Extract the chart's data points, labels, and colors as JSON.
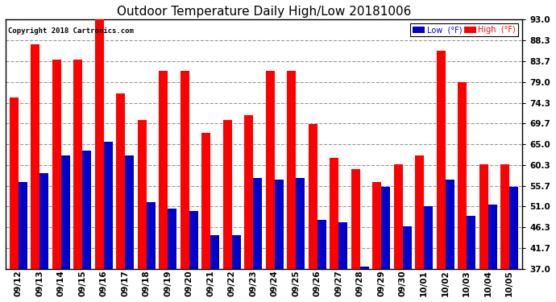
{
  "title": "Outdoor Temperature Daily High/Low 20181006",
  "copyright": "Copyright 2018 Cartronics.com",
  "categories": [
    "09/12",
    "09/13",
    "09/14",
    "09/15",
    "09/16",
    "09/17",
    "09/18",
    "09/19",
    "09/20",
    "09/21",
    "09/22",
    "09/23",
    "09/24",
    "09/25",
    "09/26",
    "09/27",
    "09/28",
    "09/29",
    "09/30",
    "10/01",
    "10/02",
    "10/03",
    "10/04",
    "10/05"
  ],
  "highs": [
    75.5,
    87.5,
    84.0,
    84.0,
    93.0,
    76.5,
    70.5,
    81.5,
    81.5,
    67.5,
    70.5,
    71.5,
    81.5,
    81.5,
    69.5,
    62.0,
    59.5,
    56.5,
    60.5,
    62.5,
    86.0,
    79.0,
    60.5,
    60.5
  ],
  "lows": [
    56.5,
    58.5,
    62.5,
    63.5,
    65.5,
    62.5,
    52.0,
    50.5,
    50.0,
    44.5,
    44.5,
    57.5,
    57.0,
    57.5,
    48.0,
    47.5,
    37.5,
    55.5,
    46.5,
    51.0,
    57.0,
    49.0,
    51.5,
    55.5
  ],
  "high_color": "#ff0000",
  "low_color": "#0000cc",
  "bg_color": "#ffffff",
  "grid_color": "#999999",
  "yticks": [
    93.0,
    88.3,
    83.7,
    79.0,
    74.3,
    69.7,
    65.0,
    60.3,
    55.7,
    51.0,
    46.3,
    41.7,
    37.0
  ],
  "ymin": 37.0,
  "ymax": 93.0,
  "title_fontsize": 11,
  "tick_fontsize": 7.5,
  "bar_width": 0.42
}
